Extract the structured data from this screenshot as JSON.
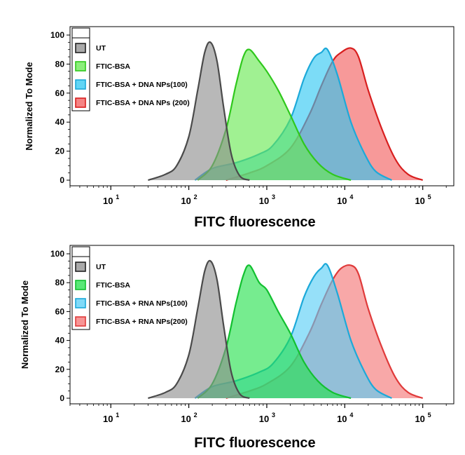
{
  "chart_data": [
    {
      "type": "area",
      "xlabel": "FITC fluorescence",
      "ylabel": "Normalized To Mode",
      "x_scale": "log",
      "xlim": [
        3,
        250000
      ],
      "ylim": [
        0,
        100
      ],
      "x_ticks": [
        {
          "base": "10",
          "exp": "1"
        },
        {
          "base": "10",
          "exp": "2"
        },
        {
          "base": "10",
          "exp": "3"
        },
        {
          "base": "10",
          "exp": "4"
        },
        {
          "base": "10",
          "exp": "5"
        }
      ],
      "y_ticks": [
        "0",
        "20",
        "40",
        "60",
        "80",
        "100"
      ],
      "legend_position": "top-left",
      "series": [
        {
          "name": "UT",
          "color": "#8c8c8c",
          "edge": "#4a4a4a",
          "x": [
            30,
            50,
            70,
            100,
            130,
            160,
            190,
            230,
            280,
            350,
            450,
            600
          ],
          "y": [
            0,
            4,
            10,
            30,
            62,
            88,
            95,
            82,
            50,
            18,
            3,
            0
          ]
        },
        {
          "name": "FTIC-BSA",
          "color": "#66e84f",
          "edge": "#2fc81c",
          "x": [
            130,
            200,
            300,
            400,
            500,
            600,
            800,
            1000,
            1400,
            2000,
            3000,
            4500,
            7000,
            12000
          ],
          "y": [
            0,
            10,
            35,
            65,
            85,
            90,
            82,
            75,
            62,
            45,
            25,
            12,
            4,
            0
          ]
        },
        {
          "name": "FTIC-BSA + DNA NPs(100)",
          "color": "#2cc7f2",
          "edge": "#1ca9d9",
          "x": [
            120,
            200,
            400,
            800,
            1200,
            2000,
            3000,
            4000,
            5000,
            6000,
            8000,
            12000,
            18000,
            25000,
            40000
          ],
          "y": [
            0,
            8,
            12,
            18,
            24,
            42,
            70,
            84,
            88,
            90,
            73,
            40,
            18,
            6,
            0
          ]
        },
        {
          "name": "FTIC-BSA + DNA NPs (200)",
          "color": "#f25b5b",
          "edge": "#d81e1e",
          "x": [
            300,
            600,
            1000,
            2000,
            3500,
            5000,
            7000,
            9000,
            12000,
            15000,
            20000,
            30000,
            45000,
            65000,
            100000
          ],
          "y": [
            0,
            5,
            10,
            22,
            45,
            65,
            82,
            88,
            91,
            85,
            62,
            35,
            14,
            4,
            0
          ]
        }
      ]
    },
    {
      "type": "area",
      "xlabel": "FITC fluorescence",
      "ylabel": "Normalized To Mode",
      "x_scale": "log",
      "xlim": [
        3,
        250000
      ],
      "ylim": [
        0,
        100
      ],
      "x_ticks": [
        {
          "base": "10",
          "exp": "1"
        },
        {
          "base": "10",
          "exp": "2"
        },
        {
          "base": "10",
          "exp": "3"
        },
        {
          "base": "10",
          "exp": "4"
        },
        {
          "base": "10",
          "exp": "5"
        }
      ],
      "y_ticks": [
        "0",
        "20",
        "40",
        "60",
        "80",
        "100"
      ],
      "legend_position": "top-left",
      "series": [
        {
          "name": "UT",
          "color": "#8c8c8c",
          "edge": "#4a4a4a",
          "x": [
            30,
            50,
            70,
            100,
            130,
            160,
            190,
            230,
            280,
            350,
            450,
            600
          ],
          "y": [
            0,
            4,
            10,
            30,
            62,
            88,
            95,
            82,
            50,
            18,
            3,
            0
          ]
        },
        {
          "name": "FTIC-BSA",
          "color": "#22e04a",
          "edge": "#12c030",
          "x": [
            130,
            200,
            300,
            400,
            500,
            600,
            800,
            1000,
            1400,
            2000,
            3000,
            4500,
            7000,
            12000
          ],
          "y": [
            0,
            10,
            35,
            65,
            85,
            92,
            80,
            75,
            60,
            45,
            25,
            12,
            4,
            0
          ]
        },
        {
          "name": "FTIC-BSA + RNA NPs(100)",
          "color": "#55cdf5",
          "edge": "#1ca9d9",
          "x": [
            120,
            200,
            400,
            800,
            1200,
            2000,
            3000,
            4000,
            5000,
            6000,
            8000,
            12000,
            18000,
            25000,
            40000
          ],
          "y": [
            0,
            8,
            12,
            18,
            24,
            42,
            70,
            84,
            90,
            92,
            73,
            40,
            18,
            6,
            0
          ]
        },
        {
          "name": "FTIC-BSA + RNA NPs(200)",
          "color": "#f47272",
          "edge": "#e03a3a",
          "x": [
            300,
            600,
            1000,
            2000,
            3500,
            5000,
            7000,
            9000,
            12000,
            15000,
            20000,
            30000,
            45000,
            65000,
            100000
          ],
          "y": [
            0,
            5,
            10,
            22,
            45,
            65,
            82,
            90,
            92,
            86,
            62,
            35,
            14,
            4,
            0
          ]
        }
      ]
    }
  ]
}
